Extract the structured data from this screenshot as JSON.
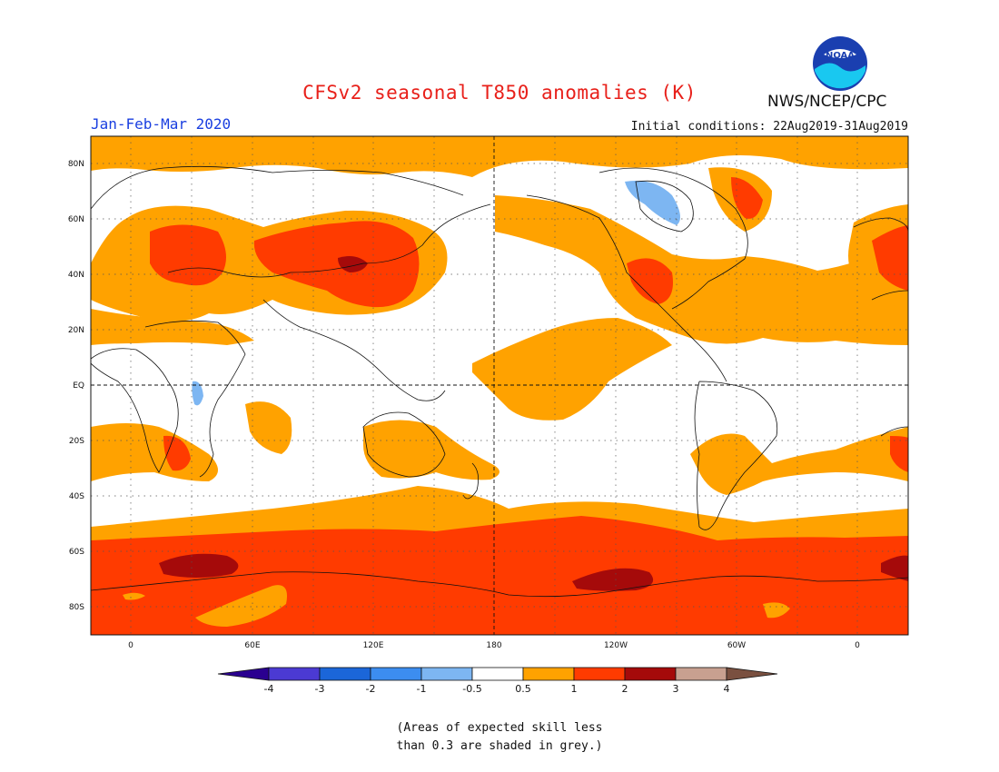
{
  "header": {
    "title": "CFSv2 seasonal T850 anomalies (K)",
    "season": "Jan-Feb-Mar 2020",
    "initial_conditions": "Initial conditions: 22Aug2019-31Aug2019",
    "org": "NWS/NCEP/CPC",
    "logo_text": "NOAA"
  },
  "map": {
    "lat_labels": [
      "80N",
      "60N",
      "40N",
      "20N",
      "EQ",
      "20S",
      "40S",
      "60S",
      "80S"
    ],
    "lon_labels": [
      "0",
      "60E",
      "120E",
      "180",
      "120W",
      "60W",
      "0"
    ]
  },
  "colorbar": {
    "tick_labels": [
      "-4",
      "-3",
      "-2",
      "-1",
      "-0.5",
      "0.5",
      "1",
      "2",
      "3",
      "4"
    ],
    "colors": [
      "#2a0090",
      "#4b3ad3",
      "#1b66d9",
      "#3c8df0",
      "#7db6f2",
      "#ffffff",
      "#ffa200",
      "#ff3b00",
      "#a50a0a",
      "#c8a090",
      "#7a5040"
    ]
  },
  "legend_colors": {
    "band_05_1": "#ffa200",
    "band_1_2": "#ff3b00",
    "band_2_3": "#a50a0a",
    "band_neg": "#7db6f2"
  },
  "footnote": {
    "line1": "(Areas of expected skill less",
    "line2": "than 0.3 are shaded in grey.)"
  }
}
